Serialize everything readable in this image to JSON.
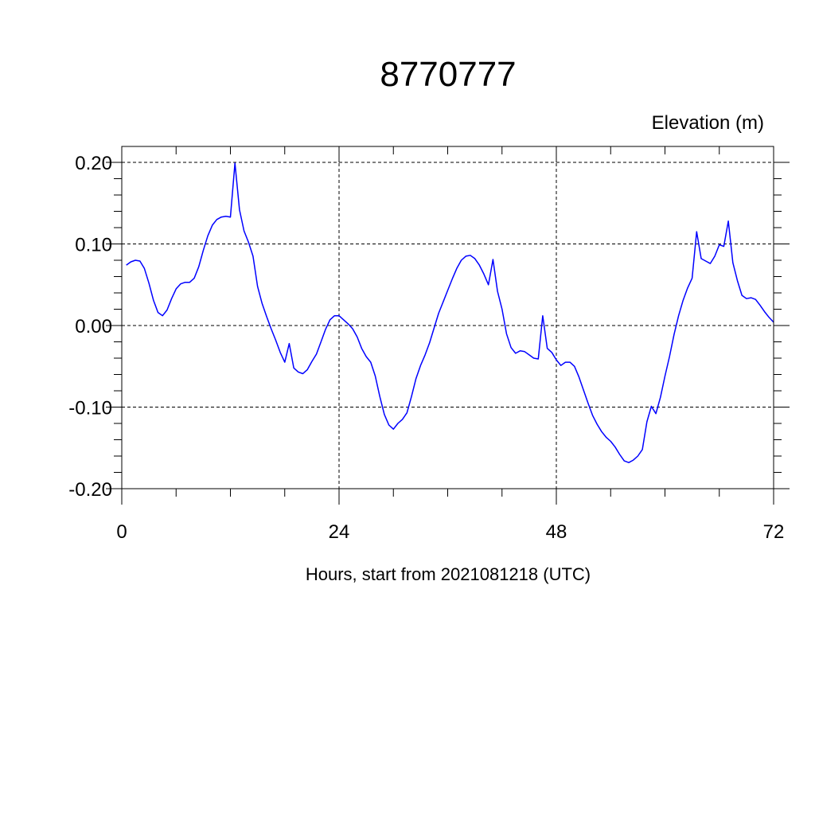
{
  "chart_data": {
    "type": "line",
    "title": "8770777",
    "ylabel": "Elevation (m)",
    "xlabel": "Hours, start from 2021081218 (UTC)",
    "xlim": [
      0,
      72
    ],
    "ylim": [
      -0.2,
      0.2
    ],
    "x_ticks": [
      0,
      24,
      48,
      72
    ],
    "x_tick_labels": [
      "0",
      "24",
      "48",
      "72"
    ],
    "y_ticks": [
      0.2,
      0.1,
      0.0,
      -0.1,
      -0.2
    ],
    "y_tick_labels": [
      "0.20",
      "0.10",
      "0.00",
      "-0.10",
      "-0.20"
    ],
    "grid": "dashed",
    "line_color": "#0000ff",
    "series": [
      {
        "x": [
          0.5,
          1.0,
          1.5,
          2.0,
          2.5,
          3.0,
          3.5,
          4.0,
          4.5,
          5.0,
          5.5,
          6.0,
          6.5,
          7.0,
          7.5,
          8.0,
          8.5,
          9.0,
          9.5,
          10.0,
          10.5,
          11.0,
          11.5,
          12.0,
          12.5,
          13.0,
          13.5,
          14.0,
          14.5,
          15.0,
          15.5,
          16.0,
          16.5,
          17.0,
          17.5,
          18.0,
          18.5,
          19.0,
          19.5,
          20.0,
          20.5,
          21.0,
          21.5,
          22.0,
          22.5,
          23.0,
          23.5,
          24.0,
          24.5,
          25.0,
          25.5,
          26.0,
          26.5,
          27.0,
          27.5,
          28.0,
          28.5,
          29.0,
          29.5,
          30.0,
          30.5,
          31.0,
          31.5,
          32.0,
          32.5,
          33.0,
          33.5,
          34.0,
          34.5,
          35.0,
          35.5,
          36.0,
          36.5,
          37.0,
          37.5,
          38.0,
          38.5,
          39.0,
          39.5,
          40.0,
          40.5,
          41.0,
          41.5,
          42.0,
          42.5,
          43.0,
          43.5,
          44.0,
          44.5,
          45.0,
          45.5,
          46.0,
          46.5,
          47.0,
          47.5,
          48.0,
          48.5,
          49.0,
          49.5,
          50.0,
          50.5,
          51.0,
          51.5,
          52.0,
          52.5,
          53.0,
          53.5,
          54.0,
          54.5,
          55.0,
          55.5,
          56.0,
          56.5,
          57.0,
          57.5,
          58.0,
          58.5,
          59.0,
          59.5,
          60.0,
          60.5,
          61.0,
          61.5,
          62.0,
          62.5,
          63.0,
          63.5,
          64.0,
          64.5,
          65.0,
          65.5,
          66.0,
          66.5,
          67.0,
          67.5,
          68.0,
          68.5,
          69.0,
          69.5,
          70.0,
          70.5,
          71.0,
          71.5,
          72.0
        ],
        "y": [
          0.074,
          0.078,
          0.08,
          0.079,
          0.07,
          0.052,
          0.031,
          0.016,
          0.012,
          0.019,
          0.033,
          0.045,
          0.051,
          0.053,
          0.053,
          0.058,
          0.072,
          0.092,
          0.11,
          0.123,
          0.13,
          0.133,
          0.134,
          0.133,
          0.199,
          0.142,
          0.116,
          0.102,
          0.085,
          0.048,
          0.027,
          0.011,
          -0.004,
          -0.018,
          -0.033,
          -0.045,
          -0.022,
          -0.052,
          -0.057,
          -0.059,
          -0.054,
          -0.044,
          -0.035,
          -0.02,
          -0.005,
          0.007,
          0.012,
          0.012,
          0.007,
          0.002,
          -0.004,
          -0.014,
          -0.028,
          -0.038,
          -0.045,
          -0.062,
          -0.087,
          -0.109,
          -0.122,
          -0.127,
          -0.12,
          -0.115,
          -0.107,
          -0.087,
          -0.065,
          -0.049,
          -0.036,
          -0.021,
          -0.003,
          0.015,
          0.029,
          0.043,
          0.057,
          0.07,
          0.08,
          0.085,
          0.086,
          0.082,
          0.074,
          0.063,
          0.05,
          0.081,
          0.042,
          0.02,
          -0.01,
          -0.027,
          -0.034,
          -0.031,
          -0.032,
          -0.036,
          -0.04,
          -0.041,
          0.012,
          -0.028,
          -0.033,
          -0.042,
          -0.049,
          -0.045,
          -0.045,
          -0.05,
          -0.063,
          -0.079,
          -0.095,
          -0.11,
          -0.121,
          -0.13,
          -0.137,
          -0.142,
          -0.149,
          -0.158,
          -0.166,
          -0.168,
          -0.165,
          -0.16,
          -0.152,
          -0.118,
          -0.099,
          -0.108,
          -0.088,
          -0.062,
          -0.038,
          -0.011,
          0.012,
          0.031,
          0.046,
          0.058,
          0.115,
          0.082,
          0.079,
          0.076,
          0.085,
          0.099,
          0.097,
          0.128,
          0.077,
          0.055,
          0.037,
          0.033,
          0.034,
          0.032,
          0.025,
          0.017,
          0.01,
          0.004
        ]
      }
    ]
  }
}
